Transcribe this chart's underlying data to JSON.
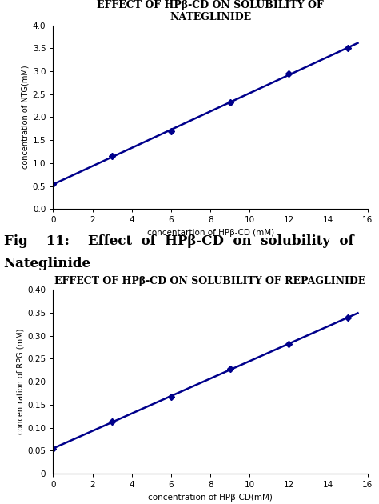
{
  "chart1": {
    "title": "EFFECT OF HPβ-CD ON SOLUBILITY OF\nNATEGLINIDE",
    "x": [
      0,
      3,
      6,
      9,
      12,
      15
    ],
    "y": [
      0.54,
      1.15,
      1.7,
      2.32,
      2.95,
      3.5
    ],
    "xlabel": "concentartion of HPβ-CD (mM)",
    "ylabel": "concentration of NTG(mM)",
    "xlim": [
      0,
      16
    ],
    "ylim": [
      0,
      4
    ],
    "xticks": [
      0,
      2,
      4,
      6,
      8,
      10,
      12,
      14,
      16
    ],
    "yticks": [
      0,
      0.5,
      1.0,
      1.5,
      2.0,
      2.5,
      3.0,
      3.5,
      4.0
    ]
  },
  "chart2": {
    "title": "EFFECT OF HPβ-CD ON SOLUBILITY OF REPAGLINIDE",
    "x": [
      0,
      3,
      6,
      9,
      12,
      15
    ],
    "y": [
      0.055,
      0.113,
      0.167,
      0.228,
      0.282,
      0.34
    ],
    "xlabel": "concentration of HPβ-CD(mM)",
    "ylabel": "concentration of RPG (mM)",
    "xlim": [
      0,
      16
    ],
    "ylim": [
      0,
      0.4
    ],
    "xticks": [
      0,
      2,
      4,
      6,
      8,
      10,
      12,
      14,
      16
    ],
    "yticks": [
      0,
      0.05,
      0.1,
      0.15,
      0.2,
      0.25,
      0.3,
      0.35,
      0.4
    ]
  },
  "caption_line1": "Fig    11:    Effect  of  HPβ-CD  on  solubility  of",
  "caption_line2": "Nateglinide",
  "line_color": "#00008B",
  "marker": "D",
  "markersize": 4,
  "linewidth": 1.8,
  "bg_color": "#ffffff",
  "title_fontsize": 9,
  "label_fontsize": 7.5,
  "tick_fontsize": 7.5,
  "caption_fontsize": 12,
  "ylabel_fontsize": 7
}
